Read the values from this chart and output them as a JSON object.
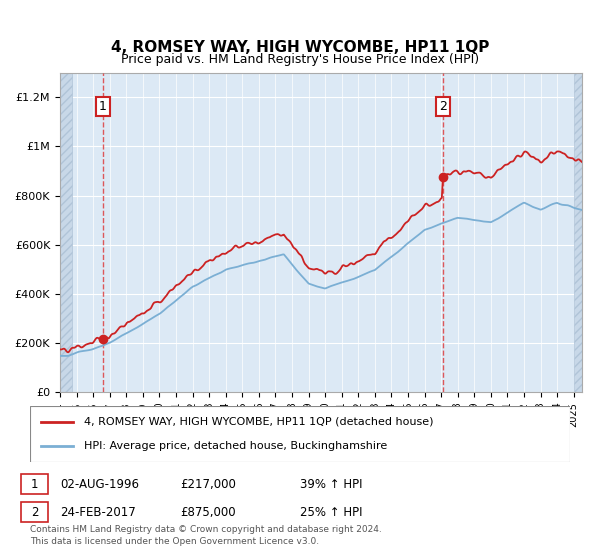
{
  "title": "4, ROMSEY WAY, HIGH WYCOMBE, HP11 1QP",
  "subtitle": "Price paid vs. HM Land Registry's House Price Index (HPI)",
  "ylim": [
    0,
    1300000
  ],
  "yticks": [
    0,
    200000,
    400000,
    600000,
    800000,
    1000000,
    1200000
  ],
  "ytick_labels": [
    "£0",
    "£200K",
    "£400K",
    "£600K",
    "£800K",
    "£1M",
    "£1.2M"
  ],
  "hpi_color": "#7bafd4",
  "price_color": "#cc2222",
  "bg_color": "#dce9f5",
  "hatch_bg_color": "#c8d8e8",
  "transaction1_date": 1996.58,
  "transaction1_price": 217000,
  "transaction2_date": 2017.12,
  "transaction2_price": 875000,
  "legend_label1": "4, ROMSEY WAY, HIGH WYCOMBE, HP11 1QP (detached house)",
  "legend_label2": "HPI: Average price, detached house, Buckinghamshire",
  "footer": "Contains HM Land Registry data © Crown copyright and database right 2024.\nThis data is licensed under the Open Government Licence v3.0.",
  "xmin": 1994.0,
  "xmax": 2025.5,
  "hatch_left_end": 1994.75,
  "hatch_right_start": 2025.0
}
